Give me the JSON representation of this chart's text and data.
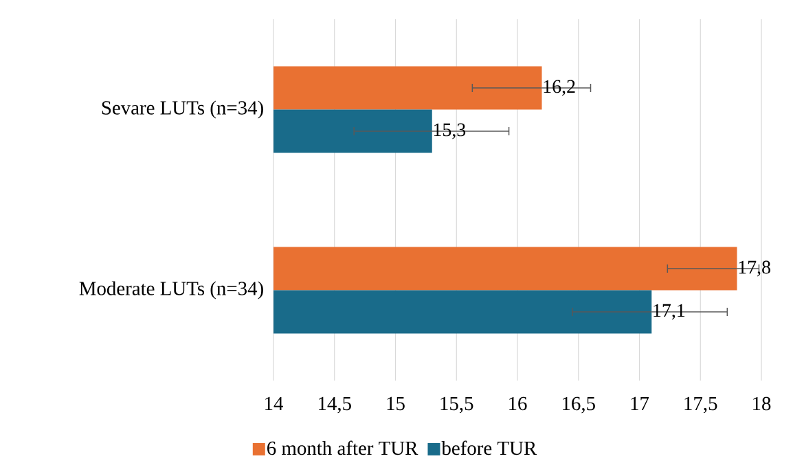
{
  "chart_data": {
    "type": "bar",
    "orientation": "horizontal",
    "categories": [
      "Sevare LUTs (n=34)",
      "Moderate LUTs (n=34)"
    ],
    "series": [
      {
        "name": "6 month after TUR",
        "color": "#e97132",
        "values": [
          16.2,
          17.8
        ],
        "errors": [
          [
            15.63,
            16.6
          ],
          [
            17.23,
            17.98
          ]
        ],
        "value_labels": [
          "16,2",
          "17,8"
        ]
      },
      {
        "name": "before TUR",
        "color": "#196b8a",
        "values": [
          15.3,
          17.1
        ],
        "errors": [
          [
            14.66,
            15.93
          ],
          [
            16.45,
            17.72
          ]
        ],
        "value_labels": [
          "15,3",
          "17,1"
        ]
      }
    ],
    "xlim": [
      14,
      18
    ],
    "xticks": [
      14,
      {
        "value": 14.5,
        "label": "14,5"
      },
      15,
      {
        "value": 15.5,
        "label": "15,5"
      },
      16,
      {
        "value": 16.5,
        "label": "16,5"
      },
      17,
      {
        "value": 17.5,
        "label": "17,5"
      },
      18
    ],
    "grid": "x",
    "legend": "bottom"
  }
}
